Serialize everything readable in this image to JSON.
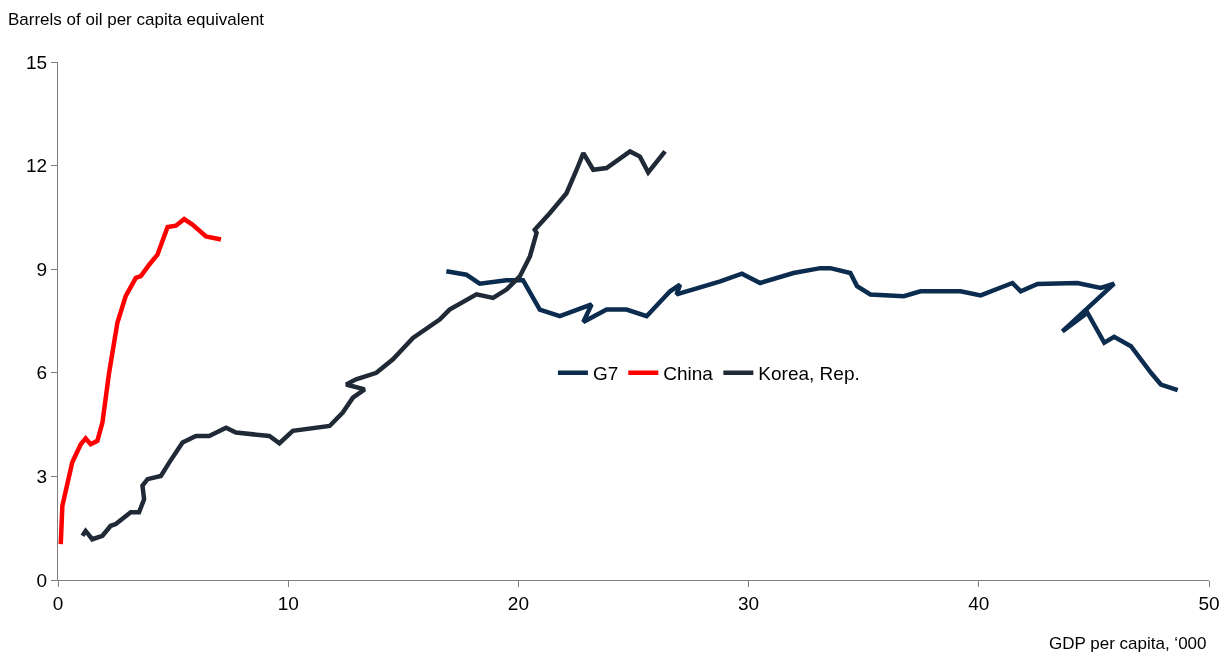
{
  "chart_data": {
    "type": "line",
    "ylabel": "Barrels of oil per capita equivalent",
    "xlabel": "GDP per capita, ‘000",
    "xlim": [
      0,
      50
    ],
    "xticks": [
      0,
      10,
      20,
      30,
      40,
      50
    ],
    "ylim": [
      0,
      15
    ],
    "yticks": [
      0,
      3,
      6,
      9,
      12,
      15
    ],
    "legend": "center",
    "line_style": "solid",
    "marker": "none",
    "series": [
      {
        "name": "G7",
        "color": "#0b2c4e",
        "x": [
          16.87,
          17.74,
          18.32,
          19.48,
          20.2,
          20.93,
          21.8,
          23.18,
          22.82,
          23.83,
          24.7,
          25.57,
          26.59,
          27.02,
          26.87,
          28.77,
          29.71,
          30.5,
          31.95,
          33.12,
          33.55,
          34.42,
          34.71,
          35.29,
          36.74,
          37.47,
          39.21,
          40.08,
          41.46,
          41.82,
          42.55,
          44.28,
          45.3,
          45.88,
          43.63,
          44.72,
          45.45,
          45.88,
          46.61,
          47.48,
          47.91,
          48.64
        ],
        "values": [
          8.94,
          8.84,
          8.58,
          8.68,
          8.68,
          7.83,
          7.64,
          7.98,
          7.47,
          7.83,
          7.83,
          7.64,
          8.36,
          8.55,
          8.27,
          8.65,
          8.87,
          8.6,
          8.89,
          9.03,
          9.03,
          8.89,
          8.51,
          8.27,
          8.22,
          8.36,
          8.36,
          8.24,
          8.6,
          8.36,
          8.57,
          8.6,
          8.46,
          8.58,
          7.2,
          7.74,
          6.87,
          7.04,
          6.77,
          6.0,
          5.66,
          5.5
        ]
      },
      {
        "name": "China",
        "color": "#ff0000",
        "x": [
          0.12,
          0.19,
          0.62,
          0.99,
          1.2,
          1.42,
          1.71,
          1.93,
          2.22,
          2.58,
          2.94,
          3.38,
          3.6,
          3.96,
          4.32,
          4.76,
          5.12,
          5.48,
          5.84,
          6.43,
          7.08
        ],
        "values": [
          1.04,
          2.15,
          3.41,
          3.93,
          4.1,
          3.93,
          4.03,
          4.56,
          6.0,
          7.45,
          8.22,
          8.75,
          8.8,
          9.13,
          9.42,
          10.22,
          10.26,
          10.45,
          10.29,
          9.95,
          9.86
        ]
      },
      {
        "name": "Korea, Rep.",
        "color": "#1f2a36",
        "x": [
          1.06,
          1.2,
          1.49,
          1.93,
          2.29,
          2.51,
          3.16,
          3.52,
          3.74,
          3.67,
          3.89,
          4.47,
          4.83,
          5.41,
          5.99,
          6.57,
          7.3,
          7.73,
          9.18,
          9.62,
          10.2,
          11.8,
          12.37,
          12.81,
          13.32,
          12.52,
          12.95,
          13.83,
          14.55,
          15.42,
          16.58,
          17.01,
          18.18,
          18.9,
          19.48,
          20.06,
          20.5,
          20.79,
          20.71,
          21.37,
          22.09,
          22.53,
          22.82,
          23.25,
          23.83,
          24.85,
          25.28,
          25.64,
          26.37
        ],
        "values": [
          1.28,
          1.42,
          1.18,
          1.28,
          1.57,
          1.62,
          1.96,
          1.96,
          2.34,
          2.73,
          2.92,
          3.01,
          3.4,
          3.98,
          4.17,
          4.17,
          4.41,
          4.27,
          4.17,
          3.96,
          4.32,
          4.46,
          4.85,
          5.28,
          5.52,
          5.66,
          5.81,
          6.0,
          6.39,
          7.01,
          7.54,
          7.83,
          8.27,
          8.17,
          8.41,
          8.79,
          9.37,
          10.05,
          10.14,
          10.63,
          11.2,
          11.88,
          12.36,
          11.88,
          11.93,
          12.41,
          12.26,
          11.8,
          12.41
        ]
      }
    ]
  }
}
